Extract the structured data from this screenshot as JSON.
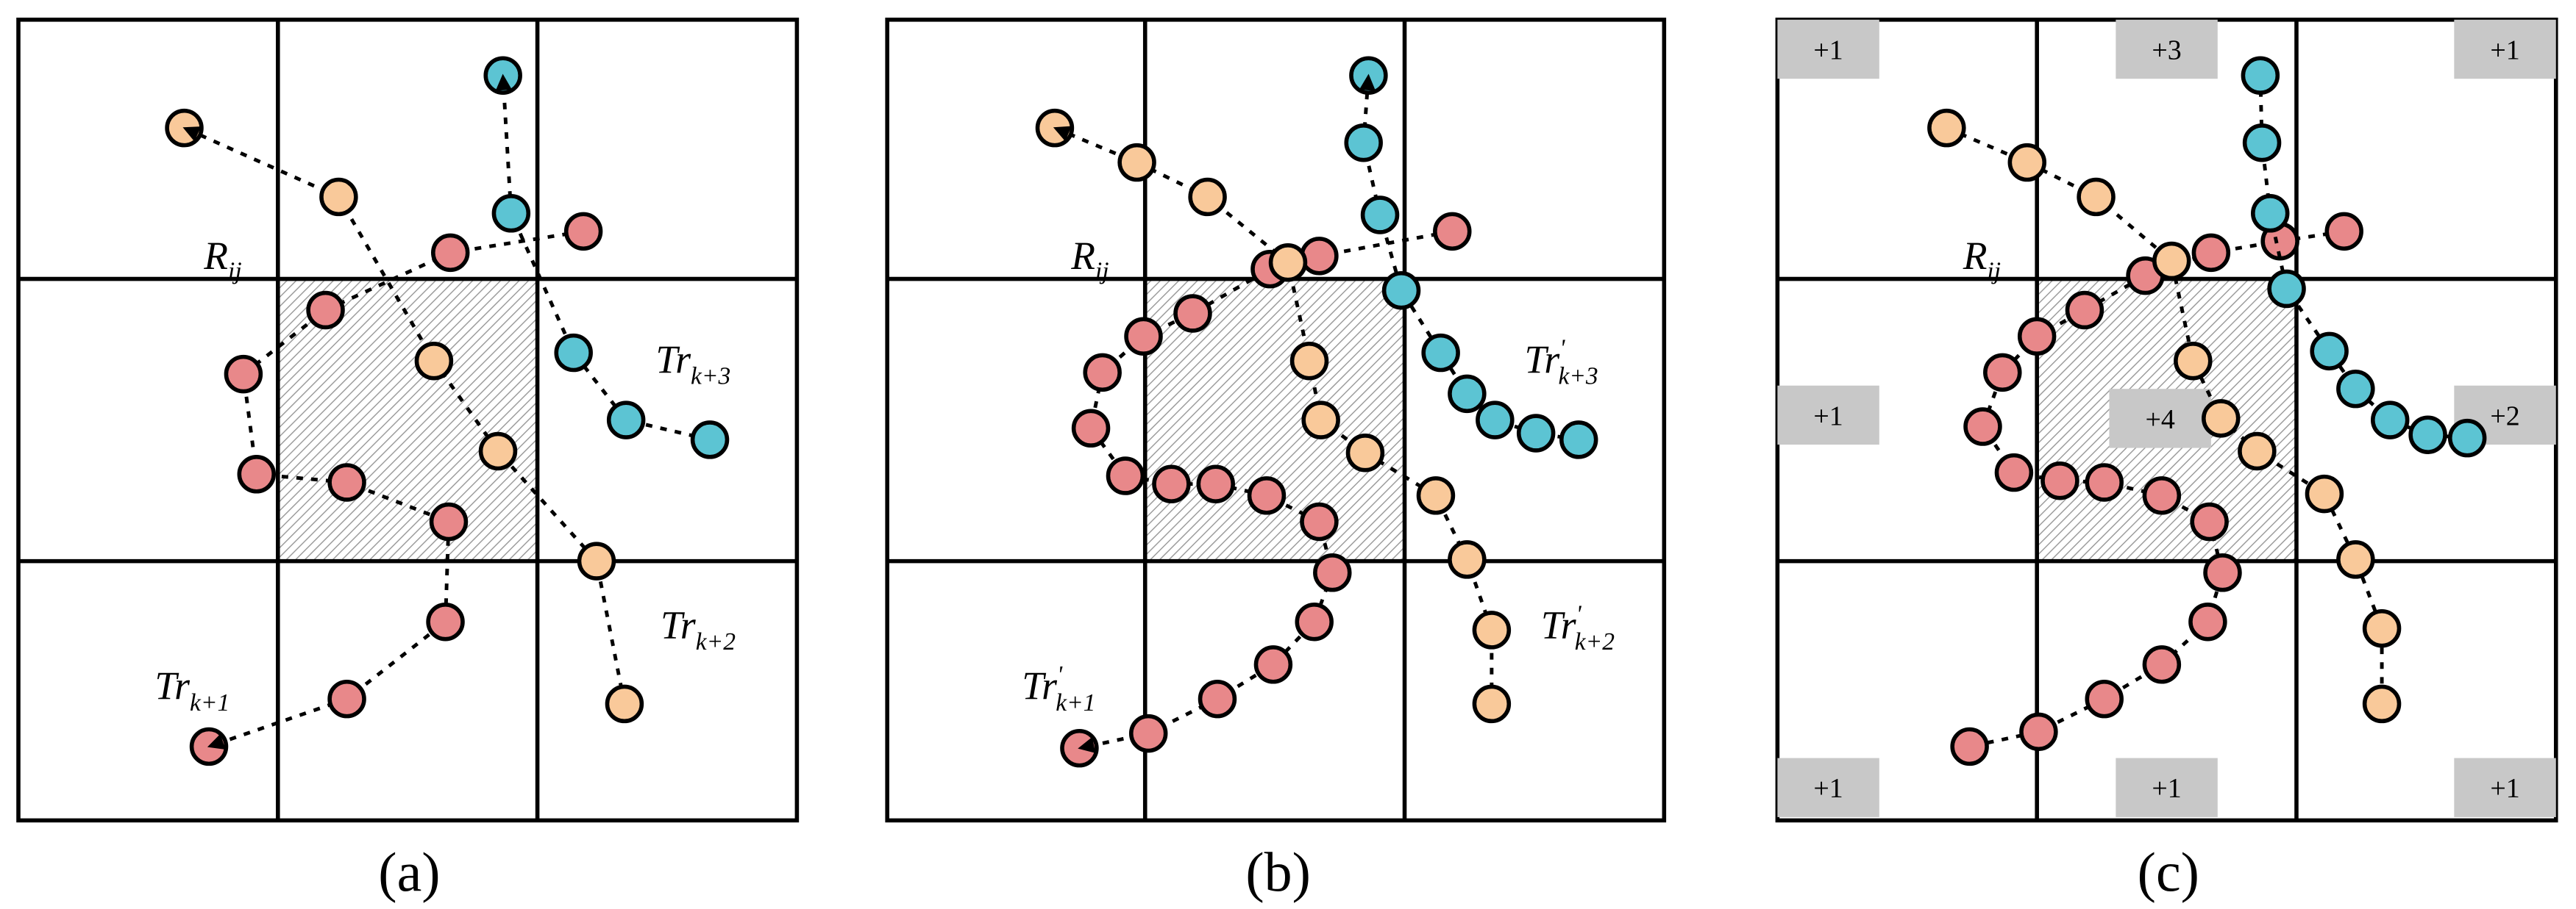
{
  "colors": {
    "red_traj": "#E8888A",
    "orange_traj": "#F9C99A",
    "blue_traj": "#5CC4D3",
    "badge": "#C8C8C8",
    "hatch": "#9a9a9a"
  },
  "panels": [
    {
      "id": "a",
      "caption": "(a)",
      "region_label": {
        "main": "R",
        "sub": "ij"
      },
      "traj_labels": [
        {
          "main": "Tr",
          "sup": "",
          "sub": "k+3"
        },
        {
          "main": "Tr",
          "sup": "",
          "sub": "k+2"
        },
        {
          "main": "Tr",
          "sup": "",
          "sub": "k+1"
        }
      ],
      "trajectories": {
        "red": [
          [
            355,
            141
          ],
          [
            274,
            154
          ],
          [
            198,
            189
          ],
          [
            148,
            228
          ],
          [
            156,
            289
          ],
          [
            211,
            294
          ],
          [
            273,
            318
          ],
          [
            271,
            379
          ],
          [
            211,
            426
          ],
          [
            127,
            455
          ]
        ],
        "orange": [
          [
            380,
            429
          ],
          [
            363,
            342
          ],
          [
            303,
            275
          ],
          [
            264,
            220
          ],
          [
            206,
            120
          ],
          [
            112,
            78
          ]
        ],
        "blue": [
          [
            432,
            268
          ],
          [
            381,
            256
          ],
          [
            349,
            215
          ],
          [
            311,
            130
          ],
          [
            306,
            46
          ]
        ]
      },
      "arrows": {
        "red": true,
        "orange": true,
        "blue": true
      },
      "badges": []
    },
    {
      "id": "b",
      "caption": "(b)",
      "region_label": {
        "main": "R",
        "sub": "ij"
      },
      "traj_labels": [
        {
          "main": "Tr",
          "sup": "'",
          "sub": "k+3"
        },
        {
          "main": "Tr",
          "sup": "'",
          "sub": "k+2"
        },
        {
          "main": "Tr",
          "sup": "'",
          "sub": "k+1"
        }
      ],
      "trajectories": {
        "red": [
          [
            884,
            141
          ],
          [
            803,
            156
          ],
          [
            773,
            164
          ],
          [
            726,
            191
          ],
          [
            696,
            205
          ],
          [
            671,
            227
          ],
          [
            664,
            261
          ],
          [
            685,
            290
          ],
          [
            713,
            295
          ],
          [
            740,
            295
          ],
          [
            771,
            302
          ],
          [
            803,
            318
          ],
          [
            811,
            349
          ],
          [
            800,
            379
          ],
          [
            775,
            405
          ],
          [
            741,
            426
          ],
          [
            699,
            447
          ],
          [
            657,
            456
          ]
        ],
        "orange": [
          [
            908,
            429
          ],
          [
            908,
            384
          ],
          [
            893,
            341
          ],
          [
            874,
            302
          ],
          [
            831,
            276
          ],
          [
            804,
            256
          ],
          [
            797,
            220
          ],
          [
            784,
            160
          ],
          [
            735,
            120
          ],
          [
            692,
            99
          ],
          [
            642,
            78
          ]
        ],
        "blue": [
          [
            961,
            268
          ],
          [
            935,
            264
          ],
          [
            910,
            256
          ],
          [
            893,
            240
          ],
          [
            877,
            215
          ],
          [
            853,
            177
          ],
          [
            840,
            131
          ],
          [
            830,
            87
          ],
          [
            833,
            46
          ]
        ]
      },
      "arrows": {
        "red": true,
        "orange": true,
        "blue": true
      },
      "badges": []
    },
    {
      "id": "c",
      "caption": "(c)",
      "region_label": {
        "main": "R",
        "sub": "ij"
      },
      "traj_labels": [],
      "trajectories": {
        "red": [
          [
            1427,
            141
          ],
          [
            1388,
            147
          ],
          [
            1346,
            154
          ],
          [
            1306,
            168
          ],
          [
            1269,
            189
          ],
          [
            1240,
            205
          ],
          [
            1219,
            227
          ],
          [
            1207,
            260
          ],
          [
            1226,
            288
          ],
          [
            1254,
            293
          ],
          [
            1281,
            294
          ],
          [
            1316,
            302
          ],
          [
            1345,
            318
          ],
          [
            1353,
            349
          ],
          [
            1344,
            379
          ],
          [
            1316,
            405
          ],
          [
            1281,
            426
          ],
          [
            1241,
            446
          ],
          [
            1199,
            455
          ]
        ],
        "orange": [
          [
            1185,
            78
          ],
          [
            1234,
            99
          ],
          [
            1276,
            120
          ],
          [
            1322,
            159
          ],
          [
            1335,
            220
          ],
          [
            1352,
            255
          ],
          [
            1374,
            275
          ],
          [
            1415,
            301
          ],
          [
            1434,
            341
          ],
          [
            1450,
            383
          ],
          [
            1450,
            429
          ]
        ],
        "blue": [
          [
            1376,
            46
          ],
          [
            1377,
            87
          ],
          [
            1382,
            130
          ],
          [
            1392,
            176
          ],
          [
            1418,
            214
          ],
          [
            1434,
            237
          ],
          [
            1455,
            256
          ],
          [
            1478,
            265
          ],
          [
            1502,
            267
          ]
        ]
      },
      "arrows": {
        "red": false,
        "orange": false,
        "blue": false
      },
      "badges": [
        {
          "text": "+1",
          "pos": "top-left"
        },
        {
          "text": "+3",
          "pos": "top-mid"
        },
        {
          "text": "+1",
          "pos": "top-right"
        },
        {
          "text": "+1",
          "pos": "mid-left"
        },
        {
          "text": "+4",
          "pos": "center"
        },
        {
          "text": "+2",
          "pos": "mid-right"
        },
        {
          "text": "+1",
          "pos": "bottom-left"
        },
        {
          "text": "+1",
          "pos": "bottom-mid"
        },
        {
          "text": "+1",
          "pos": "bottom-right"
        }
      ]
    }
  ]
}
